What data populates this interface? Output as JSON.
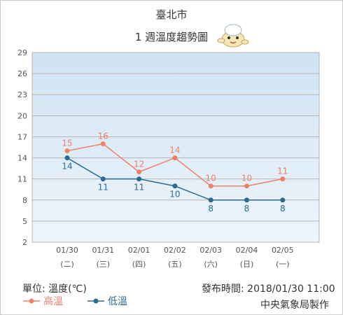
{
  "header": {
    "city": "臺北市",
    "subtitle": "1 週溫度趨勢圖"
  },
  "footer": {
    "unit": "單位: 溫度(℃)",
    "published": "發布時間: 2018/01/30 11:00",
    "credit": "中央氣象局製作"
  },
  "legend": {
    "high": "高溫",
    "low": "低溫"
  },
  "colors": {
    "high": "#f0806a",
    "low": "#2d6a92",
    "grid": "#b5b5b5",
    "plot_top": "#cfe3f3",
    "plot_bottom": "#eef5fb"
  },
  "chart_data": {
    "type": "line",
    "title": "臺北市 1 週溫度趨勢圖",
    "xlabel": "",
    "ylabel": "單位: 溫度(℃)",
    "categories": [
      "01/30",
      "01/31",
      "02/01",
      "02/02",
      "02/03",
      "02/04",
      "02/05"
    ],
    "weekdays": [
      "(二)",
      "(三)",
      "(四)",
      "(五)",
      "(六)",
      "(日)",
      "(一)"
    ],
    "ylim": [
      2,
      29
    ],
    "yticks": [
      2,
      5,
      8,
      11,
      14,
      17,
      20,
      23,
      26,
      29
    ],
    "grid": true,
    "legend_position": "bottom-left",
    "series": [
      {
        "name": "高溫",
        "values": [
          15,
          16,
          12,
          14,
          10,
          10,
          11
        ]
      },
      {
        "name": "低溫",
        "values": [
          14,
          11,
          11,
          10,
          8,
          8,
          8
        ]
      }
    ]
  }
}
